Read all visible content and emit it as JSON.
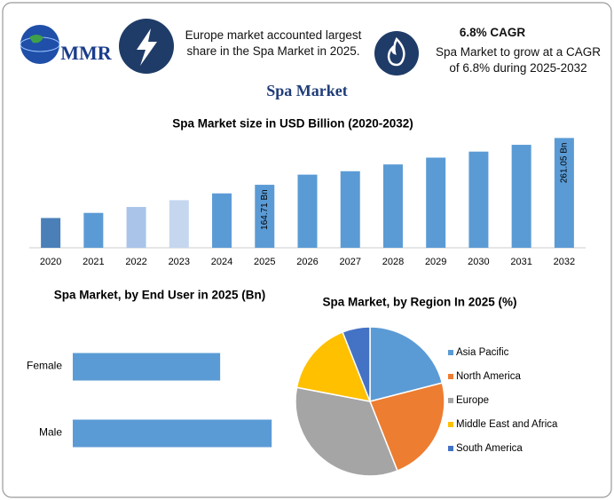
{
  "header": {
    "logo": "MMR",
    "left_text": "Europe market accounted largest share in the Spa Market in 2025.",
    "cagr_title": "6.8% CAGR",
    "cagr_text": "Spa Market to grow at a CAGR of 6.8% during 2025-2032"
  },
  "title": "Spa Market",
  "chart_data": [
    {
      "type": "bar",
      "title": "Spa Market size in USD Billion (2020-2032)",
      "categories": [
        "2020",
        "2021",
        "2022",
        "2023",
        "2024",
        "2025",
        "2026",
        "2027",
        "2028",
        "2029",
        "2030",
        "2031",
        "2032"
      ],
      "values": [
        96.3,
        106.8,
        119,
        133,
        147,
        164.71,
        185.6,
        192.6,
        206.6,
        220.6,
        233,
        247,
        261.05
      ],
      "value_labels": [
        null,
        null,
        null,
        null,
        null,
        "164.71 Bn",
        null,
        null,
        null,
        null,
        null,
        null,
        "261.05 Bn"
      ],
      "colors": [
        "#4a7fb8",
        "#5b9bd5",
        "#a9c4e8",
        "#c5d6ef",
        "#5b9bd5",
        "#5b9bd5",
        "#5b9bd5",
        "#5b9bd5",
        "#5b9bd5",
        "#5b9bd5",
        "#5b9bd5",
        "#5b9bd5",
        "#5b9bd5"
      ],
      "ylim": [
        35,
        280
      ]
    },
    {
      "type": "barh",
      "title": "Spa Market, by End User in 2025 (Bn)",
      "categories": [
        "Female",
        "Male"
      ],
      "values": [
        70.1,
        94.6
      ],
      "color": "#5b9bd5",
      "xlim": [
        0,
        100
      ]
    },
    {
      "type": "pie",
      "title": "Spa Market, by Region In 2025 (%)",
      "categories": [
        "Asia Pacific",
        "North America",
        "Europe",
        "Middle East and Africa",
        "South America"
      ],
      "values": [
        21,
        23,
        34,
        16,
        6
      ],
      "colors": [
        "#5b9bd5",
        "#ed7d31",
        "#a5a5a5",
        "#ffc000",
        "#4472c4"
      ]
    }
  ]
}
